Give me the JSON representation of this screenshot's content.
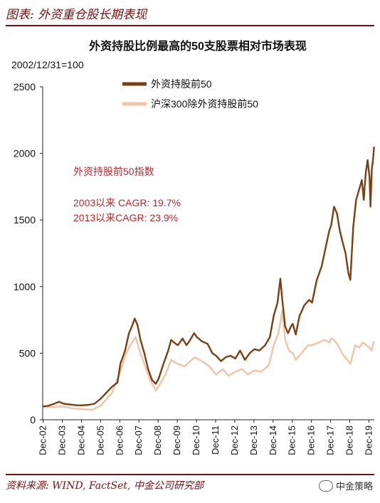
{
  "header": {
    "figure_label": "图表: 外资重仓股长期表现"
  },
  "footer": {
    "source": "资料来源: WIND, FactSet, 中金公司研究部",
    "watermark": "中金策略"
  },
  "chart_data": {
    "type": "line",
    "title": "外资持股比例最高的50支股票相对市场表现",
    "subtitle": "2002/12/31=100",
    "x_ticks": [
      "Dec-02",
      "Dec-03",
      "Dec-04",
      "Dec-05",
      "Dec-06",
      "Dec-07",
      "Dec-08",
      "Dec-09",
      "Dec-10",
      "Dec-11",
      "Dec-12",
      "Dec-13",
      "Dec-14",
      "Dec-15",
      "Dec-16",
      "Dec-17",
      "Dec-18",
      "Dec-19"
    ],
    "y_ticks": [
      0,
      500,
      1000,
      1500,
      2000,
      2500
    ],
    "ylim": [
      0,
      2500
    ],
    "xlim": [
      2002.9,
      2020.2
    ],
    "legend_position": "top",
    "annotations": [
      "外资持股前50指数",
      "2003以来 CAGR: 19.7%",
      "2013以来CAGR: 23.9%"
    ],
    "series": [
      {
        "name": "外资持股前50",
        "color": "#7b3f14",
        "points": [
          [
            2002.92,
            100
          ],
          [
            2003.2,
            105
          ],
          [
            2003.5,
            120
          ],
          [
            2003.75,
            135
          ],
          [
            2004.0,
            120
          ],
          [
            2004.3,
            115
          ],
          [
            2004.6,
            110
          ],
          [
            2004.92,
            108
          ],
          [
            2005.3,
            112
          ],
          [
            2005.6,
            120
          ],
          [
            2005.9,
            155
          ],
          [
            2006.2,
            200
          ],
          [
            2006.5,
            245
          ],
          [
            2006.8,
            280
          ],
          [
            2006.95,
            420
          ],
          [
            2007.2,
            520
          ],
          [
            2007.4,
            650
          ],
          [
            2007.55,
            700
          ],
          [
            2007.7,
            760
          ],
          [
            2007.85,
            710
          ],
          [
            2008.0,
            600
          ],
          [
            2008.2,
            500
          ],
          [
            2008.4,
            380
          ],
          [
            2008.6,
            300
          ],
          [
            2008.8,
            270
          ],
          [
            2008.95,
            310
          ],
          [
            2009.2,
            420
          ],
          [
            2009.45,
            520
          ],
          [
            2009.6,
            600
          ],
          [
            2009.75,
            580
          ],
          [
            2009.95,
            560
          ],
          [
            2010.2,
            610
          ],
          [
            2010.4,
            560
          ],
          [
            2010.55,
            590
          ],
          [
            2010.8,
            650
          ],
          [
            2010.95,
            620
          ],
          [
            2011.2,
            590
          ],
          [
            2011.5,
            570
          ],
          [
            2011.75,
            500
          ],
          [
            2011.95,
            480
          ],
          [
            2012.2,
            440
          ],
          [
            2012.45,
            470
          ],
          [
            2012.7,
            480
          ],
          [
            2012.95,
            460
          ],
          [
            2013.2,
            520
          ],
          [
            2013.45,
            450
          ],
          [
            2013.7,
            500
          ],
          [
            2013.95,
            530
          ],
          [
            2014.2,
            520
          ],
          [
            2014.5,
            560
          ],
          [
            2014.75,
            620
          ],
          [
            2014.95,
            780
          ],
          [
            2015.15,
            880
          ],
          [
            2015.3,
            1060
          ],
          [
            2015.4,
            900
          ],
          [
            2015.55,
            700
          ],
          [
            2015.7,
            650
          ],
          [
            2015.85,
            700
          ],
          [
            2015.95,
            720
          ],
          [
            2016.1,
            640
          ],
          [
            2016.3,
            780
          ],
          [
            2016.55,
            860
          ],
          [
            2016.8,
            900
          ],
          [
            2016.95,
            880
          ],
          [
            2017.2,
            1050
          ],
          [
            2017.45,
            1150
          ],
          [
            2017.7,
            1320
          ],
          [
            2017.85,
            1420
          ],
          [
            2017.95,
            1460
          ],
          [
            2018.1,
            1600
          ],
          [
            2018.25,
            1550
          ],
          [
            2018.4,
            1420
          ],
          [
            2018.55,
            1330
          ],
          [
            2018.7,
            1250
          ],
          [
            2018.85,
            1100
          ],
          [
            2018.95,
            1050
          ],
          [
            2019.1,
            1450
          ],
          [
            2019.25,
            1650
          ],
          [
            2019.35,
            1700
          ],
          [
            2019.45,
            1750
          ],
          [
            2019.55,
            1800
          ],
          [
            2019.65,
            1650
          ],
          [
            2019.75,
            1850
          ],
          [
            2019.85,
            1950
          ],
          [
            2019.95,
            1820
          ],
          [
            2020.0,
            1600
          ],
          [
            2020.07,
            1880
          ],
          [
            2020.13,
            1950
          ],
          [
            2020.19,
            2050
          ]
        ]
      },
      {
        "name": "沪深300除外资持股前50",
        "color": "#f2c3a6",
        "points": [
          [
            2002.92,
            100
          ],
          [
            2003.3,
            95
          ],
          [
            2003.75,
            100
          ],
          [
            2004.0,
            98
          ],
          [
            2004.5,
            85
          ],
          [
            2004.92,
            80
          ],
          [
            2005.5,
            75
          ],
          [
            2005.95,
            110
          ],
          [
            2006.5,
            200
          ],
          [
            2006.95,
            360
          ],
          [
            2007.2,
            480
          ],
          [
            2007.5,
            570
          ],
          [
            2007.75,
            620
          ],
          [
            2007.95,
            520
          ],
          [
            2008.2,
            420
          ],
          [
            2008.5,
            300
          ],
          [
            2008.8,
            220
          ],
          [
            2008.95,
            250
          ],
          [
            2009.3,
            340
          ],
          [
            2009.6,
            450
          ],
          [
            2009.8,
            430
          ],
          [
            2009.95,
            420
          ],
          [
            2010.3,
            400
          ],
          [
            2010.6,
            440
          ],
          [
            2010.85,
            470
          ],
          [
            2011.2,
            440
          ],
          [
            2011.6,
            400
          ],
          [
            2011.95,
            340
          ],
          [
            2012.3,
            380
          ],
          [
            2012.6,
            330
          ],
          [
            2012.95,
            360
          ],
          [
            2013.3,
            380
          ],
          [
            2013.6,
            340
          ],
          [
            2013.95,
            370
          ],
          [
            2014.3,
            360
          ],
          [
            2014.7,
            410
          ],
          [
            2014.95,
            560
          ],
          [
            2015.2,
            650
          ],
          [
            2015.4,
            820
          ],
          [
            2015.55,
            600
          ],
          [
            2015.75,
            520
          ],
          [
            2015.95,
            500
          ],
          [
            2016.1,
            450
          ],
          [
            2016.4,
            500
          ],
          [
            2016.75,
            560
          ],
          [
            2016.95,
            560
          ],
          [
            2017.3,
            580
          ],
          [
            2017.6,
            600
          ],
          [
            2017.85,
            580
          ],
          [
            2017.95,
            610
          ],
          [
            2018.1,
            600
          ],
          [
            2018.3,
            560
          ],
          [
            2018.6,
            480
          ],
          [
            2018.8,
            450
          ],
          [
            2018.95,
            420
          ],
          [
            2019.2,
            560
          ],
          [
            2019.4,
            540
          ],
          [
            2019.6,
            580
          ],
          [
            2019.8,
            560
          ],
          [
            2019.95,
            540
          ],
          [
            2020.05,
            520
          ],
          [
            2020.12,
            560
          ],
          [
            2020.19,
            590
          ]
        ]
      }
    ]
  }
}
